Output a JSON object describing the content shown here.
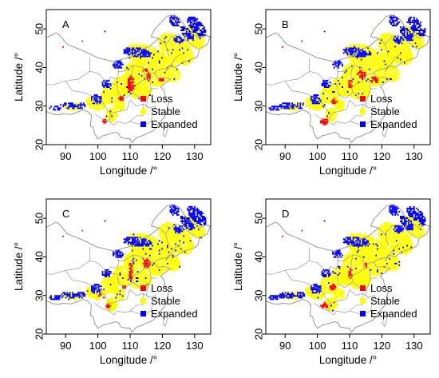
{
  "figure": {
    "colors": {
      "loss": "#ff0000",
      "stable": "#ffff00",
      "expanded": "#0000ff",
      "boundary": "#999999",
      "frame": "#000000"
    },
    "axes": {
      "xlabel": "Longitude /°",
      "ylabel": "Latitude /°",
      "xticks": [
        "90",
        "100",
        "110",
        "120",
        "130"
      ],
      "yticks": [
        "20",
        "30",
        "40",
        "50"
      ]
    },
    "legend": {
      "items": [
        {
          "key": "loss",
          "label": "Loss"
        },
        {
          "key": "stable",
          "label": "Stable"
        },
        {
          "key": "expanded",
          "label": "Expanded"
        }
      ]
    },
    "panels": [
      {
        "letter": "A"
      },
      {
        "letter": "B"
      },
      {
        "letter": "C"
      },
      {
        "letter": "D"
      }
    ]
  }
}
